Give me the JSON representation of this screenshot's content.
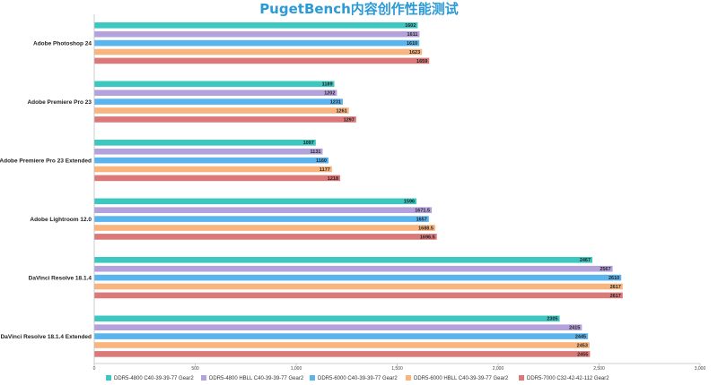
{
  "chart_data": {
    "type": "bar",
    "orientation": "horizontal",
    "title": "PugetBench内容创作性能测试",
    "title_color": "#2b9ad6",
    "categories": [
      "Adobe Photoshop 24",
      "Adobe Premiere Pro 23",
      "Adobe Premiere Pro 23 Extended",
      "Adobe Lightroom 12.0",
      "DaVinci Resolve 18.1.4",
      "DaVinci Resolve 18.1.4 Extended"
    ],
    "series": [
      {
        "name": "DDR5-4800 C40-39-39-77 Gear2",
        "color": "#3cc8c0",
        "values": [
          1602,
          1189,
          1097,
          1596,
          2467,
          2305
        ],
        "labels": [
          "1602",
          "1189",
          "1097",
          "1596",
          "2467",
          "2305"
        ]
      },
      {
        "name": "DDR5-4800 HBLL C40-39-39-77 Gear2",
        "color": "#b4a2dc",
        "values": [
          1611,
          1202,
          1131,
          1671.5,
          2567,
          2415
        ],
        "labels": [
          "1611",
          "1202",
          "1131",
          "1671.5",
          "2567",
          "2415"
        ]
      },
      {
        "name": "DDR5-6000 C40-39-39-77 Gear2",
        "color": "#5ab4ee",
        "values": [
          1610,
          1231,
          1160,
          1657,
          2610,
          2445
        ],
        "labels": [
          "1610",
          "1231",
          "1160",
          "1657",
          "2610",
          "2445"
        ]
      },
      {
        "name": "DDR5-6000 HBLL C40-39-39-77 Gear2",
        "color": "#fab47e",
        "values": [
          1623,
          1261,
          1177,
          1688.5,
          2617,
          2453
        ],
        "labels": [
          "1623",
          "1261",
          "1177",
          "1688.5",
          "2617",
          "2453"
        ]
      },
      {
        "name": "DDR5-7000 C32-42-42-112 Gear2",
        "color": "#dc7878",
        "values": [
          1659,
          1297,
          1218,
          1696.5,
          2617,
          2455
        ],
        "labels": [
          "1659",
          "1297",
          "1218",
          "1696.5",
          "2617",
          "2455"
        ]
      }
    ],
    "xlim": [
      0,
      3000
    ],
    "xticks": [
      0,
      500,
      1000,
      1500,
      2000,
      2500,
      3000
    ],
    "xtick_labels": [
      "0",
      "500",
      "1,000",
      "1,500",
      "2,000",
      "2,500",
      "3,000"
    ],
    "grid": false,
    "legend_position": "bottom"
  }
}
